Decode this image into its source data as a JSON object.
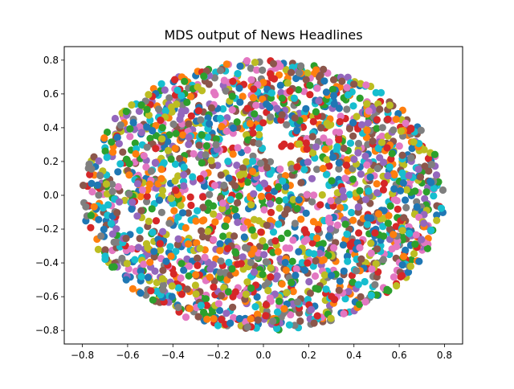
{
  "chart_data": {
    "type": "scatter",
    "title": "MDS output of News Headlines",
    "xlabel": "",
    "ylabel": "",
    "xlim": [
      -0.88,
      0.88
    ],
    "ylim": [
      -0.88,
      0.88
    ],
    "x_ticks": [
      -0.8,
      -0.6,
      -0.4,
      -0.2,
      0.0,
      0.2,
      0.4,
      0.6,
      0.8
    ],
    "x_tick_labels": [
      "−0.8",
      "−0.6",
      "−0.4",
      "−0.2",
      "0.0",
      "0.2",
      "0.4",
      "0.6",
      "0.8"
    ],
    "y_ticks": [
      0.8,
      0.6,
      0.4,
      0.2,
      0.0,
      -0.2,
      -0.4,
      -0.6,
      -0.8
    ],
    "y_tick_labels": [
      "0.8",
      "0.6",
      "0.4",
      "0.2",
      "0.0",
      "−0.2",
      "−0.4",
      "−0.6",
      "−0.8"
    ],
    "grid": false,
    "legend": "none",
    "palette": [
      "#1f77b4",
      "#ff7f0e",
      "#2ca02c",
      "#d62728",
      "#9467bd",
      "#8c564b",
      "#e377c2",
      "#7f7f7f",
      "#bcbd22",
      "#17becf"
    ],
    "distribution": {
      "shape": "filled disk of points with a sparse ring-shaped gap near radius 0.25 and a small empty patch near the center-top",
      "x_extent": [
        -0.8,
        0.8
      ],
      "y_extent": [
        -0.8,
        0.8
      ],
      "approximate_point_count": 2200
    }
  }
}
